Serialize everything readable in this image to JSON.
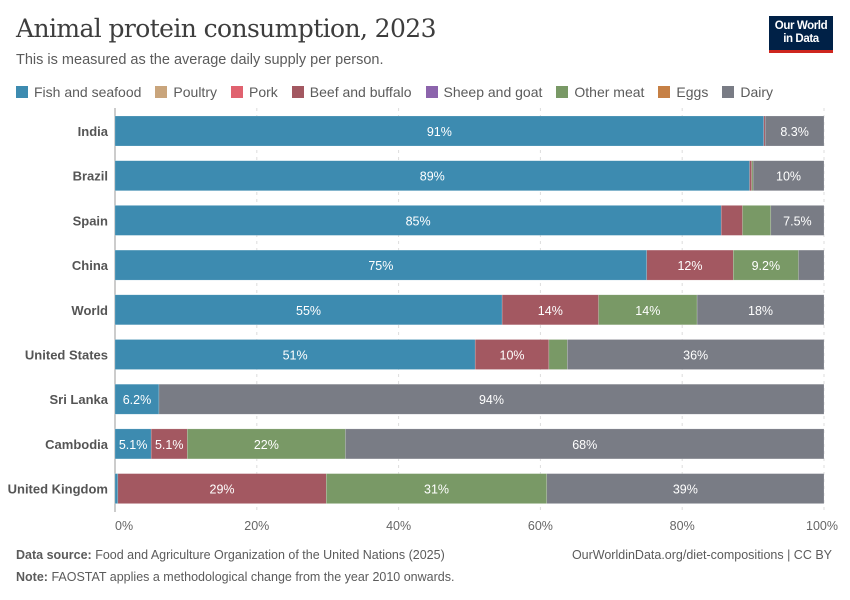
{
  "header": {
    "title": "Animal protein consumption, 2023",
    "subtitle": "This is measured as the average daily supply per person.",
    "logo_line1": "Our World",
    "logo_line2": "in Data"
  },
  "footer": {
    "source_label": "Data source:",
    "source_text": "Food and Agriculture Organization of the United Nations (2025)",
    "note_label": "Note:",
    "note_text": "FAOSTAT applies a methodological change from the year 2010 onwards.",
    "url_text": "OurWorldinData.org/diet-compositions | CC BY"
  },
  "chart_data": {
    "type": "bar",
    "orientation": "horizontal",
    "stacked": true,
    "title": "Animal protein consumption, 2023",
    "subtitle": "This is measured as the average daily supply per person.",
    "xlabel": "",
    "ylabel": "",
    "xlim": [
      0,
      100
    ],
    "x_ticks": [
      "0%",
      "20%",
      "40%",
      "60%",
      "80%",
      "100%"
    ],
    "x_tick_values": [
      0,
      20,
      40,
      60,
      80,
      100
    ],
    "grid": "vertical dashed",
    "legend_position": "top",
    "categories": [
      "India",
      "Brazil",
      "Spain",
      "China",
      "World",
      "United States",
      "Sri Lanka",
      "Cambodia",
      "United Kingdom"
    ],
    "series": [
      {
        "name": "Fish and seafood",
        "color": "#3d8bb0",
        "values": [
          91.5,
          89.5,
          85.5,
          75,
          54.6,
          50.8,
          6.2,
          5.1,
          0.4
        ],
        "labels": [
          "91%",
          "89%",
          "85%",
          "75%",
          "55%",
          "51%",
          "6.2%",
          "5.1%",
          ""
        ]
      },
      {
        "name": "Poultry",
        "color": "#c9a57c",
        "values": [
          0,
          0,
          0,
          0,
          0,
          0,
          0,
          0,
          0
        ],
        "labels": [
          "",
          "",
          "",
          "",
          "",
          "",
          "",
          "",
          ""
        ]
      },
      {
        "name": "Pork",
        "color": "#e0626f",
        "values": [
          0,
          0,
          0,
          0,
          0,
          0,
          0,
          0,
          0
        ],
        "labels": [
          "",
          "",
          "",
          "",
          "",
          "",
          "",
          "",
          ""
        ]
      },
      {
        "name": "Beef and buffalo",
        "color": "#a35861",
        "values": [
          0.2,
          0.3,
          3.0,
          12.2,
          13.6,
          10.4,
          0,
          5.1,
          29.4
        ],
        "labels": [
          "",
          "",
          "",
          "12%",
          "14%",
          "10%",
          "",
          "5.1%",
          "29%"
        ]
      },
      {
        "name": "Sheep and goat",
        "color": "#8c64ac",
        "values": [
          0,
          0,
          0,
          0,
          0,
          0,
          0,
          0,
          0
        ],
        "labels": [
          "",
          "",
          "",
          "",
          "",
          "",
          "",
          "",
          ""
        ]
      },
      {
        "name": "Other meat",
        "color": "#799966",
        "values": [
          0,
          0.2,
          4.0,
          9.2,
          13.9,
          2.6,
          0,
          22.3,
          31.1
        ],
        "labels": [
          "",
          "",
          "",
          "9.2%",
          "14%",
          "",
          "",
          "22%",
          "31%"
        ]
      },
      {
        "name": "Eggs",
        "color": "#c68045",
        "values": [
          0,
          0,
          0,
          0,
          0,
          0,
          0,
          0,
          0
        ],
        "labels": [
          "",
          "",
          "",
          "",
          "",
          "",
          "",
          "",
          ""
        ]
      },
      {
        "name": "Dairy",
        "color": "#797c85",
        "values": [
          8.3,
          10,
          7.5,
          3.6,
          17.9,
          36.2,
          93.8,
          67.5,
          39.1
        ],
        "labels": [
          "8.3%",
          "10%",
          "7.5%",
          "",
          "18%",
          "36%",
          "94%",
          "68%",
          "39%"
        ]
      }
    ]
  }
}
